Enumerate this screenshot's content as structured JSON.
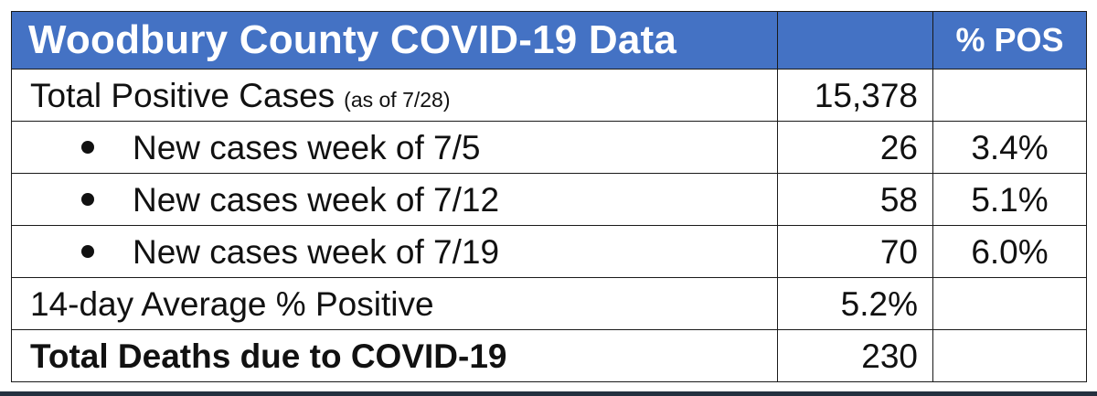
{
  "table": {
    "title": "Woodbury County COVID-19 Data",
    "pct_header": "% POS",
    "rows": [
      {
        "label": "Total Positive Cases",
        "note": "(as of 7/28)",
        "value": "15,378",
        "pct": "",
        "bullet": false,
        "bold": false
      },
      {
        "label": "New cases week of 7/5",
        "value": "26",
        "pct": "3.4%",
        "bullet": true,
        "bold": false
      },
      {
        "label": "New cases week of 7/12",
        "value": "58",
        "pct": "5.1%",
        "bullet": true,
        "bold": false
      },
      {
        "label": "New cases week of 7/19",
        "value": "70",
        "pct": "6.0%",
        "bullet": true,
        "bold": false
      },
      {
        "label": "14-day Average % Positive",
        "value": "5.2%",
        "pct": "",
        "bullet": false,
        "bold": false
      },
      {
        "label": "Total Deaths due to COVID-19",
        "value": "230",
        "pct": "",
        "bullet": false,
        "bold": true
      }
    ]
  },
  "colors": {
    "header_bg": "#4472c4",
    "header_text": "#ffffff",
    "border": "#1a1a1a"
  }
}
